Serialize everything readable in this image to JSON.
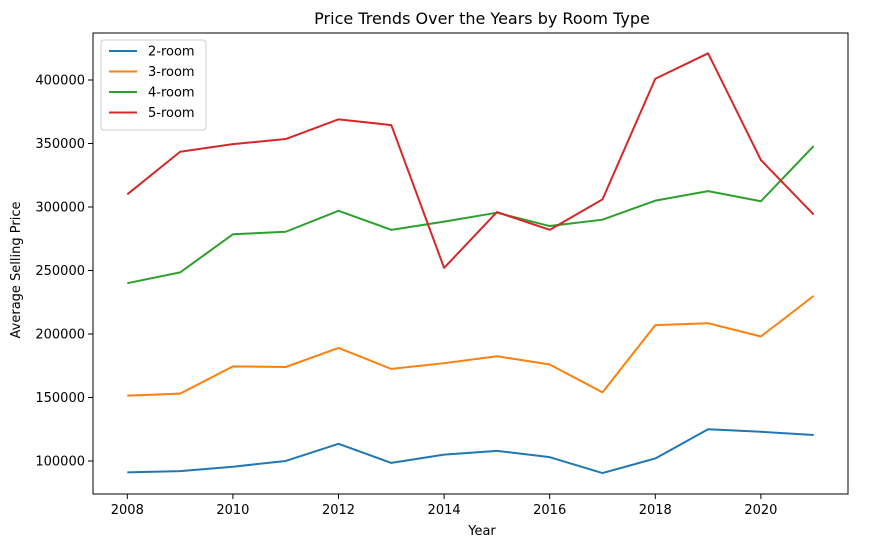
{
  "chart_data": {
    "type": "line",
    "title": "Price Trends Over the Years by Room Type",
    "xlabel": "Year",
    "ylabel": "Average Selling Price",
    "x": [
      2008,
      2009,
      2010,
      2011,
      2012,
      2013,
      2014,
      2015,
      2016,
      2017,
      2018,
      2019,
      2020,
      2021
    ],
    "xlim": [
      2007.35,
      2021.65
    ],
    "ylim": [
      74000,
      437000
    ],
    "xticks": [
      2008,
      2010,
      2012,
      2014,
      2016,
      2018,
      2020
    ],
    "yticks": [
      100000,
      150000,
      200000,
      250000,
      300000,
      350000,
      400000
    ],
    "grid": false,
    "legend_position": "top-left",
    "series": [
      {
        "name": "2-room",
        "color": "#1f77b4",
        "values": [
          91000,
          92000,
          95500,
          100000,
          113500,
          98500,
          105000,
          108000,
          103000,
          90500,
          102000,
          125000,
          123000,
          120500
        ]
      },
      {
        "name": "3-room",
        "color": "#ff7f0e",
        "values": [
          151500,
          153000,
          174500,
          174000,
          189000,
          172500,
          177000,
          182500,
          176000,
          154000,
          207000,
          208500,
          198000,
          230000
        ]
      },
      {
        "name": "4-room",
        "color": "#2ca02c",
        "values": [
          240000,
          248500,
          278500,
          280500,
          297000,
          282000,
          288500,
          295500,
          285000,
          290000,
          305000,
          312500,
          304500,
          348000
        ]
      },
      {
        "name": "5-room",
        "color": "#d62728",
        "values": [
          310000,
          343500,
          349500,
          353500,
          369000,
          364500,
          252000,
          296000,
          282000,
          306000,
          401000,
          421000,
          337000,
          294000
        ]
      }
    ]
  }
}
